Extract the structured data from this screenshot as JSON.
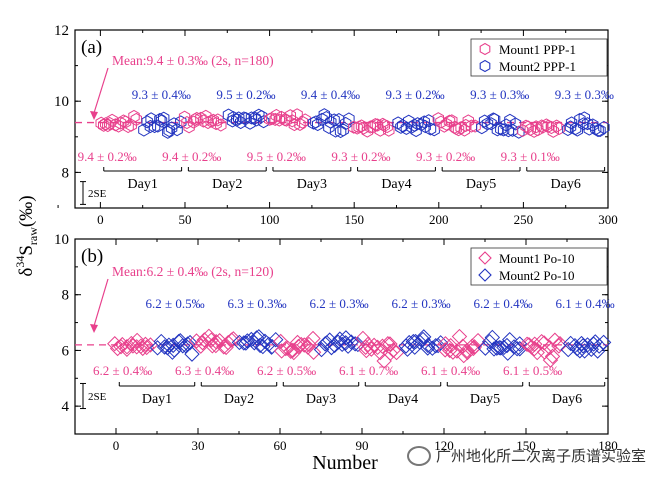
{
  "y_label": {
    "main": "δ",
    "sup": "34",
    "s": "S",
    "sub": "raw",
    "unit": "(‰)"
  },
  "x_label": "Number",
  "watermark": "广州地化所二次离子质谱实验室",
  "colors": {
    "mount1": "#e8408c",
    "mount2": "#2234c0",
    "mean_line": "#e8408c",
    "axis": "#000000"
  },
  "chart_data": [
    {
      "panel": "(a)",
      "type": "scatter",
      "xlim": [
        -15,
        300
      ],
      "ylim": [
        7,
        12
      ],
      "x_ticks": [
        "0",
        "50",
        "100",
        "150",
        "200",
        "250",
        "300"
      ],
      "y_ticks": [
        "8",
        "10",
        "12"
      ],
      "mean_value": 9.4,
      "mean_label": "Mean:9.4 ± 0.3‰ (2s, n=180)",
      "se_label": "2SE",
      "se_half": 0.32,
      "legend": [
        {
          "name": "Mount1 PPP-1",
          "marker": "hexagon",
          "color": "mount1"
        },
        {
          "name": "Mount2 PPP-1",
          "marker": "hexagon",
          "color": "mount2"
        }
      ],
      "days": [
        {
          "day": "Day1",
          "x_range": [
            0,
            50
          ],
          "m1": {
            "label": "9.4 ± 0.2‰",
            "mean": 9.4,
            "spread": 0.12
          },
          "m2": {
            "label": "9.3 ± 0.4‰",
            "mean": 9.35,
            "spread": 0.18
          }
        },
        {
          "day": "Day2",
          "x_range": [
            50,
            100
          ],
          "m1": {
            "label": "9.4 ± 0.2‰",
            "mean": 9.45,
            "spread": 0.12
          },
          "m2": {
            "label": "9.5 ± 0.2‰",
            "mean": 9.5,
            "spread": 0.1
          }
        },
        {
          "day": "Day3",
          "x_range": [
            100,
            150
          ],
          "m1": {
            "label": "9.5 ± 0.2‰",
            "mean": 9.5,
            "spread": 0.12
          },
          "m2": {
            "label": "9.4 ± 0.4‰",
            "mean": 9.4,
            "spread": 0.18
          }
        },
        {
          "day": "Day4",
          "x_range": [
            150,
            200
          ],
          "m1": {
            "label": "9.3 ± 0.2‰",
            "mean": 9.3,
            "spread": 0.12
          },
          "m2": {
            "label": "9.3 ± 0.2‰",
            "mean": 9.3,
            "spread": 0.12
          }
        },
        {
          "day": "Day5",
          "x_range": [
            200,
            250
          ],
          "m1": {
            "label": "9.3 ± 0.2‰",
            "mean": 9.35,
            "spread": 0.1
          },
          "m2": {
            "label": "9.3 ± 0.3‰",
            "mean": 9.3,
            "spread": 0.15
          }
        },
        {
          "day": "Day6",
          "x_range": [
            250,
            300
          ],
          "m1": {
            "label": "9.3 ± 0.1‰",
            "mean": 9.25,
            "spread": 0.07
          },
          "m2": {
            "label": "9.3 ± 0.3‰",
            "mean": 9.3,
            "spread": 0.15
          }
        }
      ]
    },
    {
      "panel": "(b)",
      "type": "scatter",
      "xlim": [
        -15,
        180
      ],
      "ylim": [
        3,
        10
      ],
      "x_ticks": [
        "0",
        "30",
        "60",
        "90",
        "120",
        "150",
        "180"
      ],
      "y_ticks": [
        "4",
        "6",
        "8",
        "10"
      ],
      "mean_value": 6.2,
      "mean_label": "Mean:6.2 ± 0.4‰ (2s, n=120)",
      "se_label": "2SE",
      "se_half": 0.45,
      "legend": [
        {
          "name": "Mount1 Po-10",
          "marker": "diamond",
          "color": "mount1"
        },
        {
          "name": "Mount2 Po-10",
          "marker": "diamond",
          "color": "mount2"
        }
      ],
      "days": [
        {
          "day": "Day1",
          "x_range": [
            0,
            30
          ],
          "m1": {
            "label": "6.2 ± 0.4‰",
            "mean": 6.2,
            "spread": 0.25
          },
          "m2": {
            "label": "6.2 ± 0.5‰",
            "mean": 6.15,
            "spread": 0.28
          }
        },
        {
          "day": "Day2",
          "x_range": [
            30,
            60
          ],
          "m1": {
            "label": "6.3 ± 0.4‰",
            "mean": 6.3,
            "spread": 0.25
          },
          "m2": {
            "label": "6.3 ± 0.3‰",
            "mean": 6.3,
            "spread": 0.18
          }
        },
        {
          "day": "Day3",
          "x_range": [
            60,
            90
          ],
          "m1": {
            "label": "6.2 ± 0.5‰",
            "mean": 6.2,
            "spread": 0.28
          },
          "m2": {
            "label": "6.2 ± 0.3‰",
            "mean": 6.2,
            "spread": 0.18
          }
        },
        {
          "day": "Day4",
          "x_range": [
            90,
            120
          ],
          "m1": {
            "label": "6.1 ± 0.7‰",
            "mean": 6.05,
            "spread": 0.38
          },
          "m2": {
            "label": "6.2 ± 0.3‰",
            "mean": 6.2,
            "spread": 0.18
          }
        },
        {
          "day": "Day5",
          "x_range": [
            120,
            150
          ],
          "m1": {
            "label": "6.1 ± 0.4‰",
            "mean": 6.1,
            "spread": 0.25
          },
          "m2": {
            "label": "6.2 ± 0.4‰",
            "mean": 6.2,
            "spread": 0.22
          }
        },
        {
          "day": "Day6",
          "x_range": [
            150,
            180
          ],
          "m1": {
            "label": "6.1 ± 0.5‰",
            "mean": 6.1,
            "spread": 0.3
          },
          "m2": {
            "label": "6.1 ± 0.4‰",
            "mean": 6.15,
            "spread": 0.22
          }
        }
      ]
    }
  ]
}
